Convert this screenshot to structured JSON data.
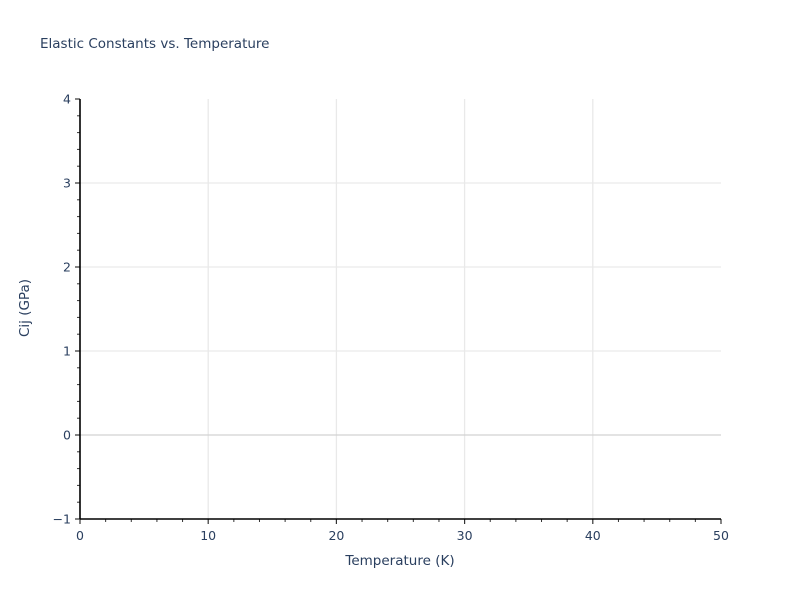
{
  "chart_data": {
    "type": "line",
    "title": "Elastic Constants vs. Temperature",
    "xlabel": "Temperature (K)",
    "ylabel": "Cij (GPa)",
    "xlim": [
      0,
      50
    ],
    "ylim": [
      -1,
      4
    ],
    "x_ticks": [
      0,
      10,
      20,
      30,
      40,
      50
    ],
    "y_ticks": [
      -1,
      0,
      1,
      2,
      3,
      4
    ],
    "x_minor_step": 2,
    "y_minor_step": 0.2,
    "grid": true,
    "legend": false,
    "series": []
  },
  "style": {
    "background": "#ffffff",
    "text_color": "#2a3f5f",
    "axis_line_color": "#000000",
    "tick_color": "#333333",
    "grid_color": "#e9e9e9",
    "zero_line_color": "#d2d2d2"
  }
}
